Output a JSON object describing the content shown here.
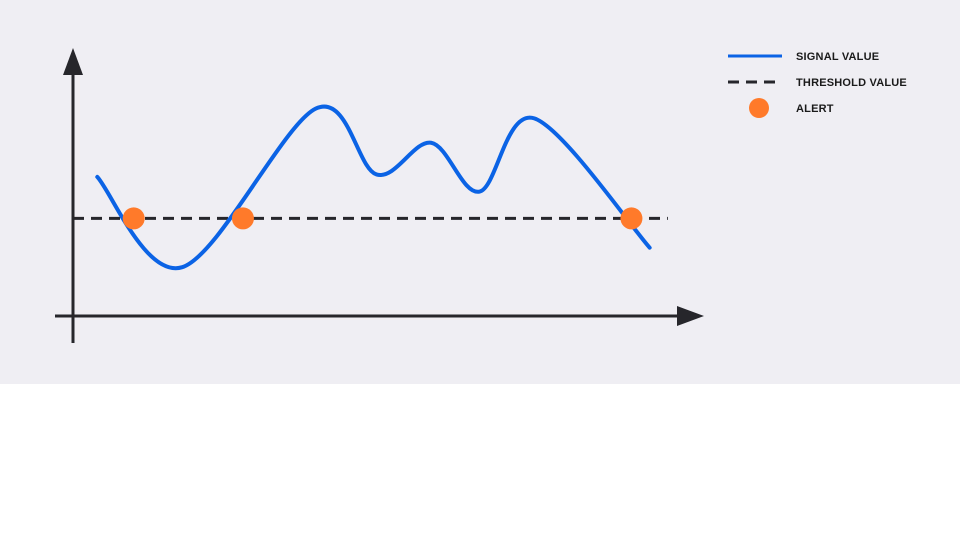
{
  "colors": {
    "panel_background": "#efeef3",
    "page_background": "#ffffff",
    "axis": "#26262b",
    "signal": "#0b63e5",
    "threshold": "#26262b",
    "alert": "#ff7a2a"
  },
  "chart_data": {
    "type": "line",
    "title": "",
    "xlabel": "",
    "ylabel": "",
    "grid": false,
    "legend_placement": "right",
    "x_range": [
      0,
      100
    ],
    "y_range": [
      0,
      100
    ],
    "legend": [
      {
        "label": "SIGNAL VALUE",
        "kind": "solid-line",
        "color": "#0b63e5"
      },
      {
        "label": "THRESHOLD VALUE",
        "kind": "dashed-line",
        "color": "#26262b"
      },
      {
        "label": "ALERT",
        "kind": "marker",
        "color": "#ff7a2a"
      }
    ],
    "series": [
      {
        "name": "SIGNAL VALUE",
        "style": "solid",
        "color": "#0b63e5",
        "points": [
          {
            "x": 4,
            "y": 57
          },
          {
            "x": 18,
            "y": 20
          },
          {
            "x": 40,
            "y": 85
          },
          {
            "x": 50,
            "y": 58
          },
          {
            "x": 59,
            "y": 71
          },
          {
            "x": 67,
            "y": 51
          },
          {
            "x": 76,
            "y": 81
          },
          {
            "x": 95,
            "y": 28
          }
        ]
      },
      {
        "name": "THRESHOLD VALUE",
        "style": "dashed",
        "color": "#26262b",
        "y": 40,
        "x_extent": [
          0,
          98
        ]
      }
    ],
    "alerts": [
      {
        "x": 10,
        "y": 40
      },
      {
        "x": 28,
        "y": 40
      },
      {
        "x": 92,
        "y": 40
      }
    ]
  }
}
